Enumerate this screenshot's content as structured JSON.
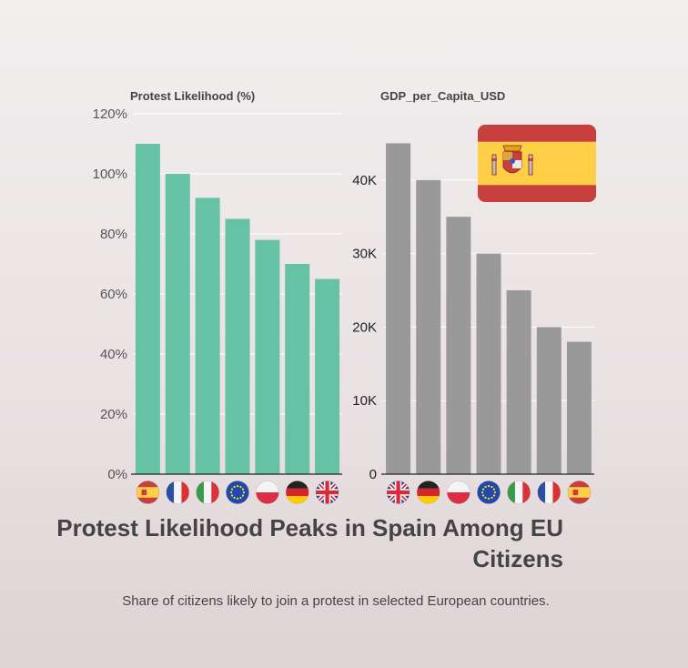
{
  "title": "Protest Likelihood Peaks in Spain Among EU Citizens",
  "subtitle": "Share of citizens likely to join a protest in selected European countries.",
  "colors": {
    "left_bar": "#66c2a5",
    "right_bar": "#999999",
    "spain_red": "#c8403e",
    "spain_yellow": "#ffd047"
  },
  "highlight_flag": "spain-flag-icon",
  "chart_data": [
    {
      "type": "bar",
      "title": "Protest Likelihood (%)",
      "categories": [
        "Spain",
        "France",
        "Italy",
        "EU",
        "Poland",
        "Germany",
        "UK"
      ],
      "category_icons": [
        "spain-flag-icon",
        "france-flag-icon",
        "italy-flag-icon",
        "eu-flag-icon",
        "poland-flag-icon",
        "germany-flag-icon",
        "uk-flag-icon"
      ],
      "values": [
        110,
        100,
        92,
        85,
        78,
        70,
        65
      ],
      "ylim": [
        0,
        120
      ],
      "yticks": [
        0,
        20,
        40,
        60,
        80,
        100,
        120
      ],
      "ytick_labels": [
        "0%",
        "20%",
        "40%",
        "60%",
        "80%",
        "100%",
        "120%"
      ],
      "xlabel": "",
      "ylabel": "",
      "grid": true
    },
    {
      "type": "bar",
      "title": "GDP_per_Capita_USD",
      "categories": [
        "UK",
        "Germany",
        "Poland",
        "EU",
        "Italy",
        "France",
        "Spain"
      ],
      "category_icons": [
        "uk-flag-icon",
        "germany-flag-icon",
        "poland-flag-icon",
        "eu-flag-icon",
        "italy-flag-icon",
        "france-flag-icon",
        "spain-flag-icon"
      ],
      "values": [
        45000,
        40000,
        35000,
        30000,
        25000,
        20000,
        18000
      ],
      "ylim": [
        0,
        50000
      ],
      "yticks": [
        0,
        10000,
        20000,
        30000,
        40000
      ],
      "ytick_labels": [
        "0",
        "10K",
        "20K",
        "30K",
        "40K"
      ],
      "xlabel": "",
      "ylabel": "",
      "grid": true
    }
  ]
}
